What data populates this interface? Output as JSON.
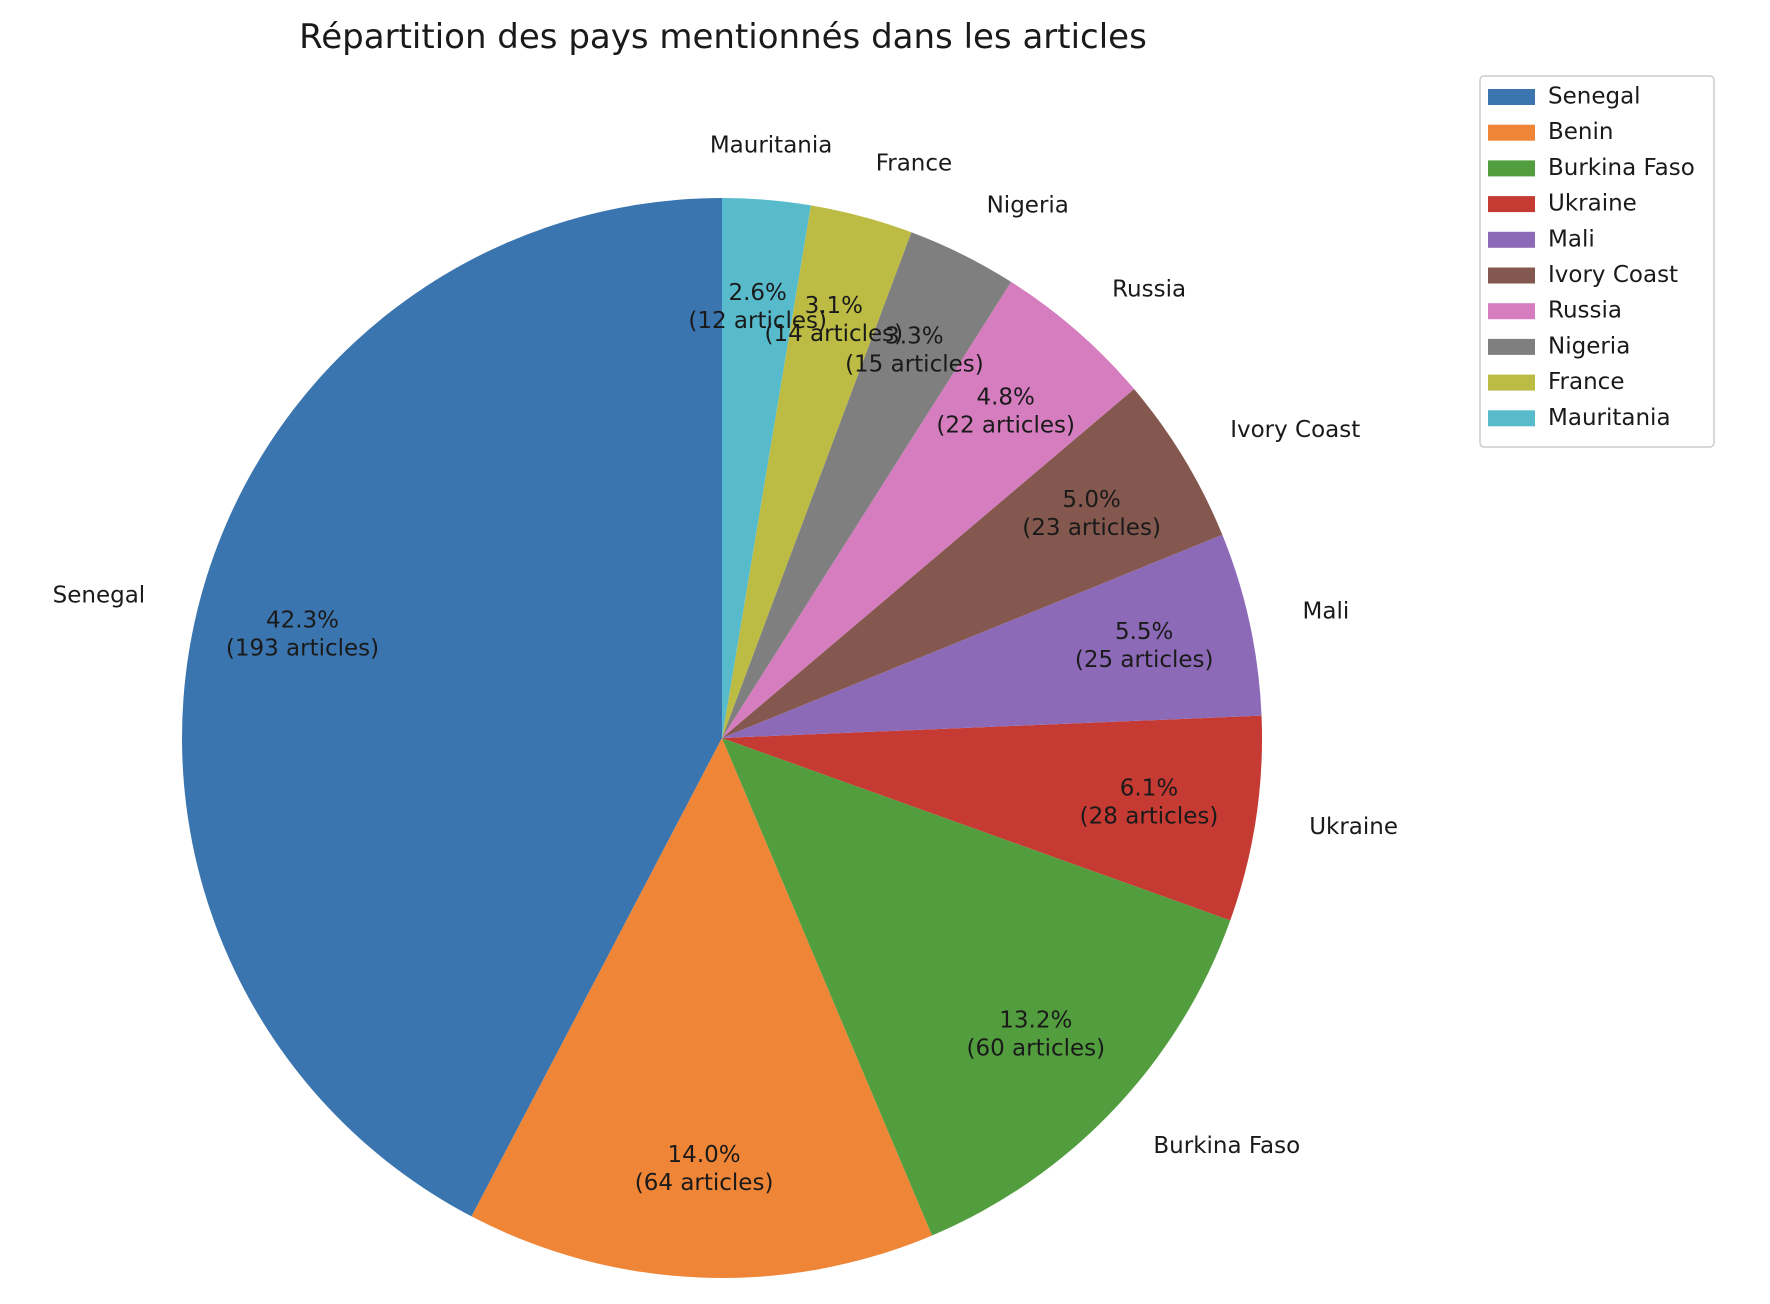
{
  "chart_data": {
    "type": "pie",
    "title": "Répartition des pays mentionnés dans les articles",
    "legend_position": "top-right",
    "value_unit_label": "articles",
    "slices": [
      {
        "label": "Senegal",
        "value": 193,
        "percent_label": "42.3%",
        "count_label": "(193 articles)",
        "color": "#3a75af"
      },
      {
        "label": "Benin",
        "value": 64,
        "percent_label": "14.0%",
        "count_label": "(64 articles)",
        "color": "#ee8537"
      },
      {
        "label": "Burkina Faso",
        "value": 60,
        "percent_label": "13.2%",
        "count_label": "(60 articles)",
        "color": "#529e3e"
      },
      {
        "label": "Ukraine",
        "value": 28,
        "percent_label": "6.1%",
        "count_label": "(28 articles)",
        "color": "#c53a32"
      },
      {
        "label": "Mali",
        "value": 25,
        "percent_label": "5.5%",
        "count_label": "(25 articles)",
        "color": "#8d6ab8"
      },
      {
        "label": "Ivory Coast",
        "value": 23,
        "percent_label": "5.0%",
        "count_label": "(23 articles)",
        "color": "#84584e"
      },
      {
        "label": "Russia",
        "value": 22,
        "percent_label": "4.8%",
        "count_label": "(22 articles)",
        "color": "#d57dbe"
      },
      {
        "label": "Nigeria",
        "value": 15,
        "percent_label": "3.3%",
        "count_label": "(15 articles)",
        "color": "#7f7f7f"
      },
      {
        "label": "France",
        "value": 14,
        "percent_label": "3.1%",
        "count_label": "(14 articles)",
        "color": "#bcbc45"
      },
      {
        "label": "Mauritania",
        "value": 12,
        "percent_label": "2.6%",
        "count_label": "(12 articles)",
        "color": "#58bbcc"
      }
    ]
  }
}
